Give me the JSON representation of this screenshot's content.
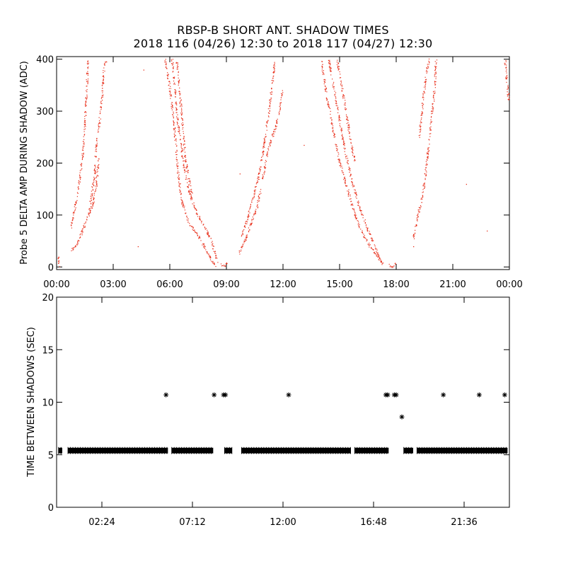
{
  "title": "RBSP-B SHORT ANT. SHADOW TIMES",
  "subtitle": "2018 116 (04/26) 12:30 to 2018 117 (04/27) 12:30",
  "chart_data": [
    {
      "type": "scatter",
      "ylabel": "Probe 5 DELTA AMP DURING SHADOW (ADC)",
      "xlim": [
        0,
        24
      ],
      "ylim": [
        -5,
        405
      ],
      "xticks": [
        0,
        3,
        6,
        9,
        12,
        15,
        18,
        21,
        24
      ],
      "xtick_labels": [
        "00:00",
        "03:00",
        "06:00",
        "09:00",
        "12:00",
        "15:00",
        "18:00",
        "21:00",
        "00:00"
      ],
      "yticks": [
        0,
        100,
        200,
        300,
        400
      ],
      "ytick_labels": [
        "0",
        "100",
        "200",
        "300",
        "400"
      ],
      "marker_color": "#e8321e",
      "segments": [
        {
          "x": [
            0.05,
            0.15
          ],
          "y": [
            22,
            0
          ]
        },
        {
          "x": [
            0.7,
            1.0,
            1.3,
            1.6,
            1.9,
            2.1,
            2.2
          ],
          "y": [
            30,
            40,
            65,
            95,
            120,
            160,
            210
          ]
        },
        {
          "x": [
            0.75,
            0.95,
            1.2,
            1.4,
            1.55,
            1.65
          ],
          "y": [
            75,
            115,
            165,
            230,
            320,
            400
          ]
        },
        {
          "x": [
            1.7,
            1.8,
            2.0,
            2.1
          ],
          "y": [
            100,
            130,
            180,
            250
          ]
        },
        {
          "x": [
            2.2,
            2.4,
            2.5,
            2.65
          ],
          "y": [
            260,
            330,
            390,
            400
          ]
        },
        {
          "x": [
            5.75,
            6.0,
            6.2,
            6.4,
            6.6,
            7.0,
            7.5,
            7.8,
            8.1,
            8.4
          ],
          "y": [
            400,
            340,
            280,
            190,
            130,
            85,
            60,
            40,
            20,
            0
          ]
        },
        {
          "x": [
            6.1,
            6.4,
            6.7,
            7.0,
            7.4,
            7.8,
            8.2,
            8.5
          ],
          "y": [
            400,
            280,
            200,
            145,
            105,
            80,
            50,
            10
          ]
        },
        {
          "x": [
            6.35,
            6.55,
            6.8,
            7.2
          ],
          "y": [
            400,
            320,
            210,
            130
          ]
        },
        {
          "x": [
            8.7,
            8.85,
            9.05
          ],
          "y": [
            5,
            2,
            10
          ]
        },
        {
          "x": [
            9.65,
            10.0,
            10.3,
            10.6,
            10.8
          ],
          "y": [
            25,
            55,
            85,
            115,
            150
          ]
        },
        {
          "x": [
            9.8,
            10.1,
            10.4,
            10.7,
            10.95,
            11.2,
            11.4,
            11.55
          ],
          "y": [
            60,
            95,
            135,
            175,
            230,
            290,
            350,
            400
          ]
        },
        {
          "x": [
            10.9,
            11.1,
            11.3,
            11.55,
            11.8,
            11.95
          ],
          "y": [
            170,
            210,
            240,
            265,
            300,
            340
          ]
        },
        {
          "x": [
            14.0,
            14.3,
            14.6,
            15.0,
            15.4,
            15.8,
            16.2,
            16.6,
            17.0,
            17.3
          ],
          "y": [
            400,
            330,
            270,
            200,
            150,
            100,
            65,
            40,
            20,
            5
          ]
        },
        {
          "x": [
            14.4,
            14.7,
            15.0,
            15.3,
            15.6,
            16.0,
            16.4,
            16.8,
            17.2
          ],
          "y": [
            400,
            340,
            280,
            220,
            170,
            120,
            80,
            45,
            10
          ]
        },
        {
          "x": [
            14.85,
            15.1,
            15.4,
            15.8
          ],
          "y": [
            400,
            350,
            280,
            200
          ]
        },
        {
          "x": [
            17.6,
            17.8,
            17.95
          ],
          "y": [
            5,
            0,
            8
          ]
        },
        {
          "x": [
            18.9,
            19.1,
            19.4,
            19.6,
            19.8,
            20.0,
            20.1
          ],
          "y": [
            55,
            95,
            140,
            200,
            270,
            340,
            400
          ]
        },
        {
          "x": [
            19.2,
            19.4,
            19.6,
            19.75
          ],
          "y": [
            250,
            320,
            380,
            400
          ]
        },
        {
          "x": [
            23.75,
            23.85,
            23.95
          ],
          "y": [
            400,
            360,
            320
          ]
        }
      ],
      "scattered": [
        {
          "x": [
            4.6,
            7.4,
            4.3,
            11.0,
            13.1,
            21.7,
            22.8,
            9.7,
            18.9
          ],
          "y": [
            380,
            110,
            40,
            240,
            235,
            160,
            70,
            180,
            40
          ]
        }
      ]
    },
    {
      "type": "scatter",
      "ylabel": "TIME BETWEEN SHADOWS (SEC)",
      "xlim": [
        0,
        24
      ],
      "ylim": [
        0,
        20
      ],
      "xticks": [
        2.4,
        7.2,
        12.0,
        16.8,
        21.6
      ],
      "xtick_labels": [
        "02:24",
        "07:12",
        "12:00",
        "16:48",
        "21:36"
      ],
      "yticks": [
        0,
        5,
        10,
        15,
        20
      ],
      "ytick_labels": [
        "0",
        "5",
        "10",
        "15",
        "20"
      ],
      "marker": "asterisk",
      "marker_color": "#000000",
      "baseline_value": 5.4,
      "baseline_segments": [
        [
          0.1,
          0.3
        ],
        [
          0.6,
          5.9
        ],
        [
          6.1,
          8.3
        ],
        [
          8.9,
          9.3
        ],
        [
          9.8,
          15.6
        ],
        [
          15.8,
          17.6
        ],
        [
          18.4,
          18.9
        ],
        [
          19.1,
          23.9
        ]
      ],
      "outliers": {
        "x": [
          5.8,
          8.35,
          8.85,
          8.95,
          12.3,
          17.45,
          17.55,
          17.9,
          18.0,
          18.3,
          20.5,
          22.4,
          23.75
        ],
        "y": [
          10.7,
          10.7,
          10.7,
          10.7,
          10.7,
          10.7,
          10.7,
          10.7,
          10.7,
          8.6,
          10.7,
          10.7,
          10.7
        ]
      }
    }
  ]
}
